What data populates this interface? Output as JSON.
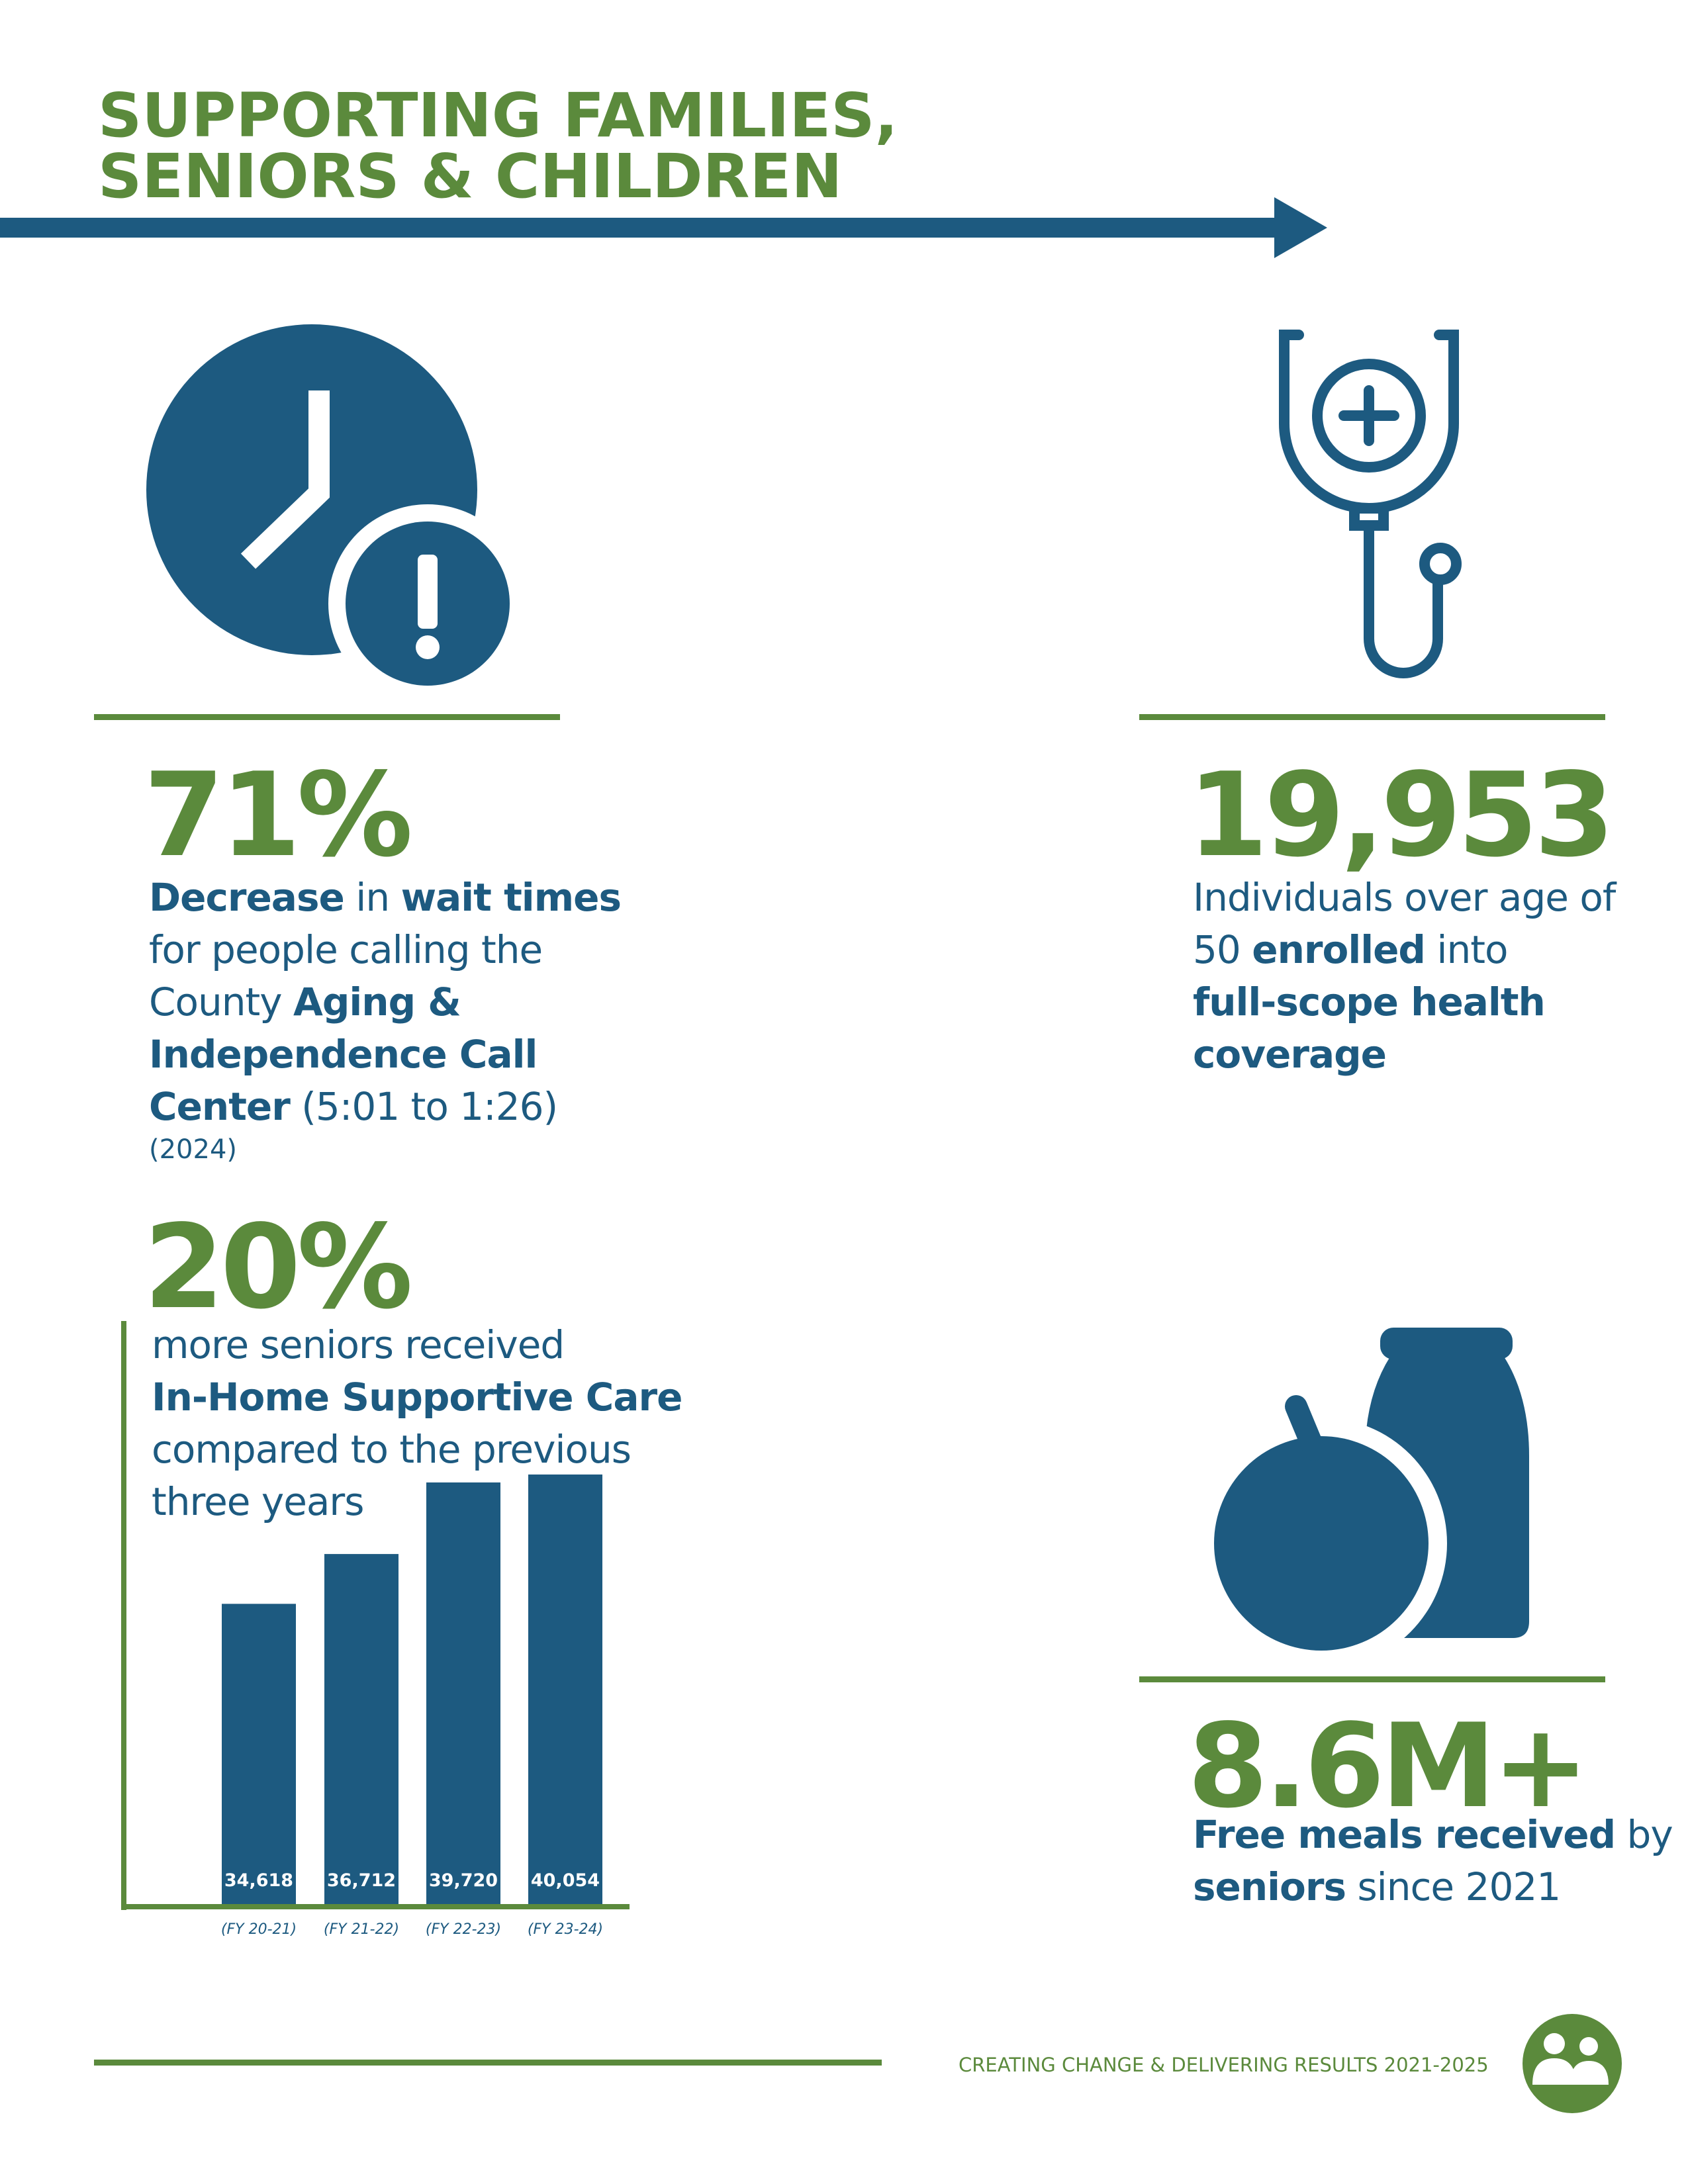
{
  "header": {
    "title_lines": [
      "SUPPORTING FAMILIES,",
      "SENIORS & CHILDREN"
    ]
  },
  "stats": [
    {
      "value": "71%",
      "lines": [
        [
          {
            "text": "Decrease",
            "bold": true
          },
          {
            "text": " in "
          },
          {
            "text": "wait times",
            "bold": true
          }
        ],
        [
          {
            "text": "for people calling the"
          }
        ],
        [
          {
            "text": "County "
          },
          {
            "text": "Aging &",
            "bold": true
          }
        ],
        [
          {
            "text": "Independence Call",
            "bold": true
          }
        ],
        [
          {
            "text": "Center",
            "bold": true
          },
          {
            "text": " (5:01 to 1:26)"
          }
        ]
      ],
      "note": "(2024)"
    },
    {
      "value": "19,953",
      "lines": [
        [
          {
            "text": "Individuals over age of"
          }
        ],
        [
          {
            "text": "50 "
          },
          {
            "text": "enrolled",
            "bold": true
          },
          {
            "text": " into"
          }
        ],
        [
          {
            "text": "full-scope health",
            "bold": true
          }
        ],
        [
          {
            "text": "coverage",
            "bold": true
          }
        ]
      ]
    },
    {
      "value": "20%",
      "lines": [
        [
          {
            "text": "more seniors received"
          }
        ],
        [
          {
            "text": "In-Home Supportive Care",
            "bold": true
          }
        ],
        [
          {
            "text": "compared to the previous"
          }
        ],
        [
          {
            "text": "three years"
          }
        ]
      ]
    },
    {
      "value": "8.6M+",
      "lines": [
        [
          {
            "text": "Free meals received",
            "bold": true
          },
          {
            "text": " by"
          }
        ],
        [
          {
            "text": "seniors",
            "bold": true
          },
          {
            "text": " since 2021"
          }
        ]
      ]
    }
  ],
  "chart_data": {
    "type": "bar",
    "categories": [
      "(FY 20-21)",
      "(FY 21-22)",
      "(FY 22-23)",
      "(FY 23-24)"
    ],
    "values": [
      34618,
      36712,
      39720,
      40054
    ],
    "value_labels": [
      "34,618",
      "36,712",
      "39,720",
      "40,054"
    ],
    "ylim": [
      22000,
      42000
    ],
    "color": "#1d5a80"
  },
  "footer": {
    "text": "CREATING CHANGE & DELIVERING RESULTS 2021-2025"
  }
}
